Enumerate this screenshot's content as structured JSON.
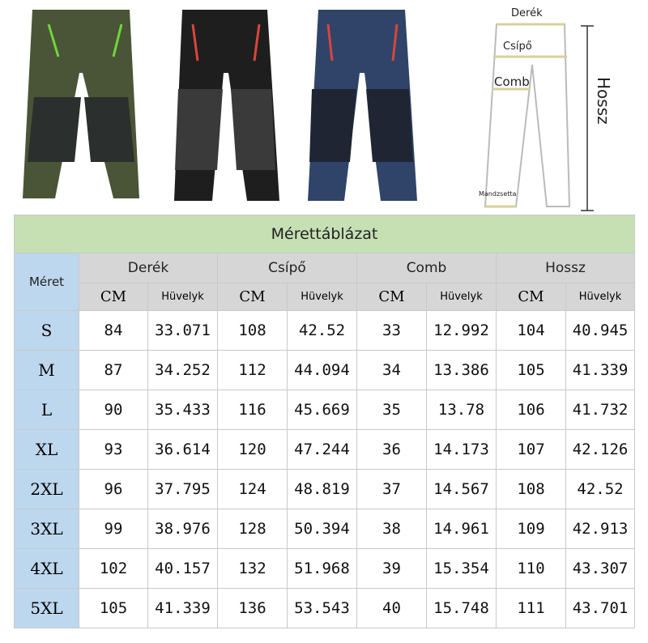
{
  "products": [
    {
      "color_name": "army-green",
      "color": "#4a5436",
      "accent": "#6fd63a"
    },
    {
      "color_name": "black",
      "color": "#1e1e1e",
      "accent": "#d9463a"
    },
    {
      "color_name": "navy",
      "color": "#2f4468",
      "accent": "#d9463a"
    }
  ],
  "diagram": {
    "waist": "Derék",
    "hip": "Csípő",
    "thigh": "Comb",
    "cuff": "Mandzsetta",
    "length": "Hossz"
  },
  "table": {
    "title": "Mérettáblázat",
    "size_header": "Méret",
    "groups": [
      "Derék",
      "Csípő",
      "Comb",
      "Hossz"
    ],
    "units": {
      "cm": "CM",
      "inch": "Hüvelyk"
    },
    "rows": [
      {
        "size": "S",
        "values": [
          "84",
          "33.071",
          "108",
          "42.52",
          "33",
          "12.992",
          "104",
          "40.945"
        ]
      },
      {
        "size": "M",
        "values": [
          "87",
          "34.252",
          "112",
          "44.094",
          "34",
          "13.386",
          "105",
          "41.339"
        ]
      },
      {
        "size": "L",
        "values": [
          "90",
          "35.433",
          "116",
          "45.669",
          "35",
          "13.78",
          "106",
          "41.732"
        ]
      },
      {
        "size": "XL",
        "values": [
          "93",
          "36.614",
          "120",
          "47.244",
          "36",
          "14.173",
          "107",
          "42.126"
        ]
      },
      {
        "size": "2XL",
        "values": [
          "96",
          "37.795",
          "124",
          "48.819",
          "37",
          "14.567",
          "108",
          "42.52"
        ]
      },
      {
        "size": "3XL",
        "values": [
          "99",
          "38.976",
          "128",
          "50.394",
          "38",
          "14.961",
          "109",
          "42.913"
        ]
      },
      {
        "size": "4XL",
        "values": [
          "102",
          "40.157",
          "132",
          "51.968",
          "39",
          "15.354",
          "110",
          "43.307"
        ]
      },
      {
        "size": "5XL",
        "values": [
          "105",
          "41.339",
          "136",
          "53.543",
          "40",
          "15.748",
          "111",
          "43.701"
        ]
      }
    ]
  }
}
